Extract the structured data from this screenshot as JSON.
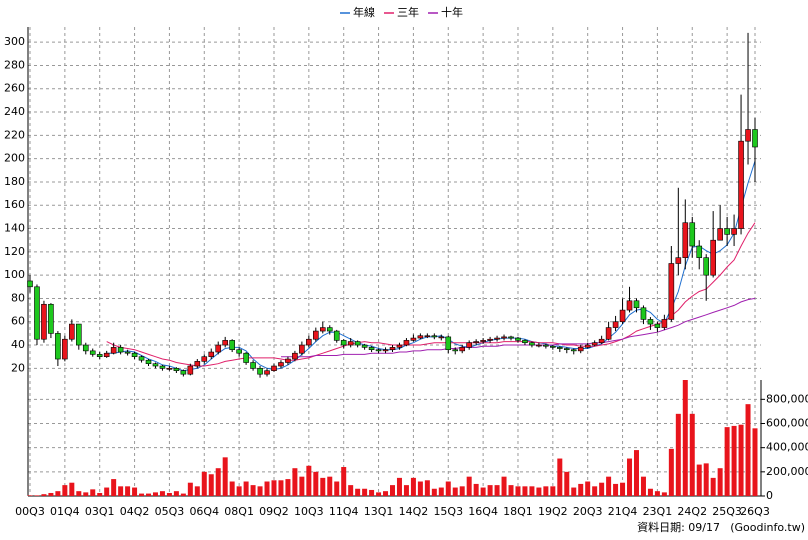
{
  "chart_data": {
    "type": "candlestick",
    "series": [
      {
        "name": "年線",
        "color": "#1f6fd0",
        "values": [
          null,
          null,
          null,
          null,
          null,
          null,
          null,
          null,
          null,
          null,
          null,
          33,
          33,
          34,
          35,
          34,
          31,
          28,
          26,
          23,
          22,
          20,
          18,
          19,
          20,
          23,
          28,
          33,
          37,
          38,
          38,
          35,
          28,
          23,
          20,
          19,
          20,
          23,
          27,
          32,
          37,
          43,
          48,
          51,
          51,
          48,
          45,
          42,
          40,
          39,
          37,
          36,
          36,
          37,
          40,
          42,
          45,
          47,
          47,
          48,
          45,
          41,
          39,
          38,
          40,
          42,
          44,
          45,
          46,
          46,
          46,
          45,
          43,
          42,
          41,
          39,
          39,
          38,
          37,
          37,
          37,
          39,
          41,
          46,
          51,
          58,
          66,
          70,
          71,
          68,
          62,
          59,
          71,
          86,
          108,
          124,
          125,
          121,
          118,
          121,
          126,
          136,
          158,
          179,
          198
        ]
      },
      {
        "name": "三年",
        "color": "#e0206a",
        "values": [
          null,
          null,
          null,
          null,
          null,
          null,
          null,
          null,
          null,
          null,
          null,
          43,
          40,
          38,
          37,
          36,
          34,
          32,
          30,
          28,
          27,
          25,
          24,
          23,
          22,
          22,
          23,
          24,
          26,
          27,
          28,
          29,
          29,
          29,
          29,
          29,
          28,
          27,
          27,
          28,
          29,
          31,
          33,
          35,
          37,
          39,
          41,
          42,
          43,
          42,
          42,
          41,
          40,
          40,
          40,
          40,
          40,
          41,
          42,
          42,
          42,
          42,
          42,
          42,
          42,
          42,
          42,
          42,
          43,
          43,
          43,
          43,
          43,
          42,
          42,
          42,
          41,
          40,
          40,
          39,
          39,
          39,
          40,
          41,
          43,
          45,
          48,
          52,
          54,
          56,
          58,
          60,
          65,
          70,
          77,
          82,
          86,
          88,
          94,
          100,
          107,
          113,
          125,
          136,
          145
        ]
      },
      {
        "name": "十年",
        "color": "#a020b0",
        "values": [
          null,
          null,
          null,
          null,
          null,
          null,
          null,
          null,
          null,
          null,
          null,
          null,
          null,
          null,
          null,
          null,
          null,
          null,
          null,
          null,
          null,
          null,
          null,
          null,
          null,
          null,
          null,
          null,
          null,
          null,
          null,
          null,
          null,
          null,
          null,
          null,
          30,
          30,
          30,
          30,
          30,
          31,
          31,
          31,
          31,
          32,
          32,
          32,
          32,
          33,
          33,
          33,
          33,
          34,
          34,
          35,
          35,
          36,
          36,
          36,
          37,
          37,
          38,
          38,
          38,
          39,
          39,
          39,
          40,
          40,
          40,
          40,
          40,
          40,
          40,
          40,
          41,
          41,
          41,
          41,
          41,
          42,
          42,
          43,
          44,
          45,
          47,
          48,
          49,
          50,
          51,
          53,
          55,
          57,
          60,
          62,
          64,
          66,
          68,
          70,
          72,
          74,
          77,
          79,
          80
        ]
      }
    ],
    "categories": [
      "00Q3",
      null,
      null,
      null,
      null,
      "01Q4",
      null,
      null,
      null,
      null,
      "03Q1",
      null,
      null,
      null,
      null,
      "04Q2",
      null,
      null,
      null,
      null,
      "05Q3",
      null,
      null,
      null,
      null,
      "06Q4",
      null,
      null,
      null,
      null,
      "08Q1",
      null,
      null,
      null,
      null,
      "09Q2",
      null,
      null,
      null,
      null,
      "10Q3",
      null,
      null,
      null,
      null,
      "11Q4",
      null,
      null,
      null,
      null,
      "13Q1",
      null,
      null,
      null,
      null,
      "14Q2",
      null,
      null,
      null,
      null,
      "15Q3",
      null,
      null,
      null,
      null,
      "16Q4",
      null,
      null,
      null,
      null,
      "18Q1",
      null,
      null,
      null,
      null,
      "19Q2",
      null,
      null,
      null,
      null,
      "20Q3",
      null,
      null,
      null,
      null,
      "21Q4",
      null,
      null,
      null,
      null,
      "23Q1",
      null,
      null,
      null,
      null,
      "24Q2",
      null,
      null,
      null,
      null,
      "25Q3",
      null,
      null,
      null,
      "26Q3"
    ],
    "open": [
      95,
      90,
      45,
      75,
      50,
      28,
      45,
      58,
      40,
      35,
      32,
      30,
      33,
      38,
      34,
      33,
      30,
      27,
      24,
      22,
      20,
      20,
      18,
      15,
      22,
      26,
      30,
      34,
      40,
      44,
      36,
      33,
      25,
      20,
      15,
      18,
      22,
      25,
      28,
      33,
      40,
      45,
      52,
      55,
      52,
      44,
      40,
      43,
      40,
      38,
      36,
      35,
      36,
      38,
      40,
      44,
      46,
      48,
      48,
      47,
      47,
      36,
      35,
      38,
      42,
      43,
      44,
      45,
      46,
      47,
      46,
      44,
      42,
      40,
      40,
      39,
      38,
      37,
      36,
      35,
      38,
      40,
      42,
      45,
      55,
      60,
      70,
      78,
      72,
      62,
      58,
      55,
      62,
      110,
      115,
      145,
      125,
      115,
      100,
      130,
      140,
      135,
      140,
      215,
      225
    ],
    "high": [
      100,
      92,
      78,
      76,
      52,
      48,
      62,
      58,
      42,
      37,
      34,
      35,
      42,
      40,
      36,
      34,
      31,
      28,
      25,
      23,
      22,
      21,
      19,
      24,
      28,
      32,
      37,
      43,
      47,
      45,
      38,
      34,
      27,
      22,
      20,
      24,
      27,
      30,
      35,
      43,
      48,
      55,
      60,
      57,
      53,
      45,
      46,
      44,
      41,
      39,
      37,
      38,
      40,
      42,
      46,
      49,
      50,
      50,
      50,
      49,
      48,
      38,
      40,
      44,
      45,
      46,
      47,
      48,
      49,
      48,
      47,
      45,
      43,
      42,
      41,
      40,
      39,
      38,
      37,
      40,
      42,
      44,
      48,
      60,
      65,
      80,
      90,
      80,
      74,
      64,
      60,
      66,
      125,
      175,
      165,
      150,
      130,
      118,
      155,
      160,
      150,
      152,
      255,
      308,
      235
    ],
    "low": [
      85,
      40,
      42,
      46,
      22,
      26,
      43,
      36,
      32,
      30,
      28,
      29,
      32,
      32,
      31,
      28,
      25,
      22,
      20,
      18,
      18,
      16,
      13,
      14,
      20,
      24,
      28,
      32,
      38,
      34,
      30,
      23,
      18,
      12,
      13,
      17,
      20,
      23,
      26,
      31,
      38,
      43,
      50,
      49,
      42,
      37,
      38,
      38,
      36,
      34,
      33,
      33,
      34,
      36,
      39,
      43,
      45,
      46,
      45,
      44,
      33,
      32,
      33,
      36,
      40,
      41,
      42,
      43,
      44,
      44,
      42,
      40,
      38,
      38,
      37,
      36,
      34,
      33,
      32,
      33,
      37,
      39,
      41,
      44,
      52,
      58,
      68,
      68,
      58,
      53,
      51,
      53,
      60,
      100,
      105,
      115,
      105,
      78,
      98,
      130,
      125,
      125,
      135,
      195,
      180
    ],
    "close": [
      90,
      45,
      75,
      50,
      28,
      45,
      58,
      40,
      35,
      32,
      30,
      33,
      38,
      34,
      33,
      30,
      27,
      24,
      22,
      20,
      20,
      18,
      15,
      22,
      26,
      30,
      34,
      40,
      44,
      36,
      33,
      25,
      20,
      15,
      18,
      22,
      25,
      28,
      33,
      40,
      45,
      52,
      55,
      52,
      44,
      40,
      43,
      40,
      38,
      36,
      35,
      36,
      38,
      40,
      44,
      46,
      48,
      48,
      47,
      47,
      36,
      35,
      38,
      42,
      43,
      44,
      45,
      46,
      47,
      46,
      44,
      42,
      40,
      40,
      39,
      38,
      37,
      36,
      35,
      38,
      40,
      42,
      45,
      55,
      60,
      70,
      78,
      72,
      62,
      58,
      55,
      62,
      110,
      115,
      145,
      125,
      115,
      100,
      130,
      140,
      135,
      140,
      215,
      225,
      210
    ],
    "up_color": "#e8141c",
    "down_color": "#1ec81e",
    "volume": {
      "color": "#e8141c",
      "values": [
        5000,
        5000,
        15000,
        25000,
        40000,
        90000,
        110000,
        40000,
        30000,
        55000,
        25000,
        70000,
        140000,
        80000,
        80000,
        70000,
        20000,
        20000,
        30000,
        40000,
        25000,
        40000,
        20000,
        110000,
        80000,
        200000,
        180000,
        230000,
        320000,
        120000,
        80000,
        120000,
        90000,
        80000,
        120000,
        130000,
        130000,
        140000,
        230000,
        160000,
        250000,
        200000,
        150000,
        160000,
        120000,
        240000,
        90000,
        60000,
        60000,
        50000,
        30000,
        40000,
        90000,
        150000,
        90000,
        150000,
        120000,
        130000,
        60000,
        70000,
        120000,
        70000,
        80000,
        160000,
        100000,
        70000,
        90000,
        90000,
        160000,
        90000,
        80000,
        80000,
        80000,
        70000,
        80000,
        80000,
        310000,
        200000,
        70000,
        100000,
        120000,
        80000,
        110000,
        160000,
        100000,
        110000,
        310000,
        380000,
        160000,
        60000,
        40000,
        30000,
        390000,
        680000,
        960000,
        680000,
        260000,
        270000,
        150000,
        230000,
        570000,
        580000,
        590000,
        760000,
        560000
      ]
    },
    "ylim": [
      10,
      313
    ],
    "yticks": [
      20,
      40,
      60,
      80,
      100,
      120,
      140,
      160,
      180,
      200,
      220,
      240,
      260,
      280,
      300
    ],
    "y2lim": [
      0,
      960000
    ],
    "y2ticks": [
      0,
      {
        "value": 200000,
        "label": "200,000"
      },
      {
        "value": 400000,
        "label": "400,000"
      },
      {
        "value": 600000,
        "label": "600,000"
      },
      {
        "value": 800000,
        "label": "800,000"
      }
    ],
    "grid": true,
    "legend": "top",
    "footer_date": "資料日期: 09/17",
    "source": "(Goodinfo.tw)"
  }
}
